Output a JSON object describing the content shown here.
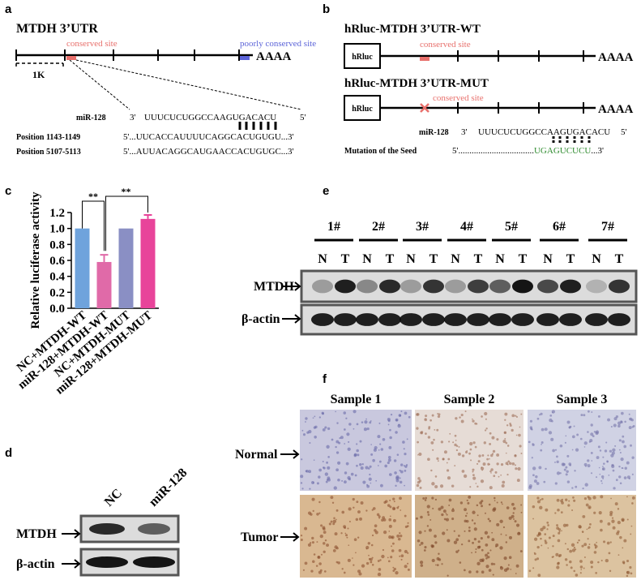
{
  "panels": {
    "a": {
      "label": "a",
      "title": "MTDH 3’UTR",
      "conserved": "conserved site",
      "poorly": "poorly conserved site",
      "polyA": "AAAA",
      "scale": "1K",
      "mirna": "miR-128",
      "end3": "3'",
      "end5": "5'",
      "mirna_seq": "UUUCUCUGGCCAAGUGACACU",
      "rows": [
        {
          "name": "Position 1143-1149",
          "seq": "5'...UUCACCAUUUUCAGGCACUGUGU...3'"
        },
        {
          "name": "Position 5107-5113",
          "seq": "5'...AUUACAGGCAUGAACCACUGUGC...3'"
        }
      ]
    },
    "b": {
      "label": "b",
      "wt_title": "hRluc-MTDH 3’UTR-WT",
      "mut_title": "hRluc-MTDH 3’UTR-MUT",
      "box": "hRluc",
      "conserved": "conserved site",
      "polyA": "AAAA",
      "mirna": "miR-128",
      "end3": "3'",
      "end5": "5'",
      "mirna_seq": "UUUCUCUGGCCAAGUGACACU",
      "mutation": "Mutation of the Seed",
      "mut_prefix": "5'..................................",
      "mut_seed": "UGAGUCUCU",
      "mut_suffix": "...3'"
    },
    "c": {
      "label": "c"
    },
    "d": {
      "label": "d",
      "lanes": [
        "NC",
        "miR-128"
      ],
      "rows": [
        "MTDH",
        "β-actin"
      ]
    },
    "e": {
      "label": "e",
      "groups": [
        "1#",
        "2#",
        "3#",
        "4#",
        "5#",
        "6#",
        "7#"
      ],
      "lane_n": "N",
      "lane_t": "T",
      "rows": [
        "MTDH",
        "β-actin"
      ]
    },
    "f": {
      "label": "f",
      "samples": [
        "Sample 1",
        "Sample 2",
        "Sample 3"
      ],
      "rows": [
        "Normal",
        "Tumor"
      ]
    }
  },
  "chart_data": {
    "type": "bar",
    "y_label": "Relative luciferase activity",
    "categories": [
      "NC+MTDH-WT",
      "miR-128+MTDH-WT",
      "NC+MTDH-MUT",
      "miR-128+MTDH-MUT"
    ],
    "values": [
      1.0,
      0.58,
      1.0,
      1.12
    ],
    "errors": [
      0,
      0.09,
      0,
      0.05
    ],
    "colors": [
      "#6fa3dc",
      "#e06aa8",
      "#8a8fc4",
      "#e8449a"
    ],
    "ylim": [
      0,
      1.2
    ],
    "yticks": [
      {
        "value": 0,
        "label": "0.0"
      },
      {
        "value": 0.2,
        "label": "0.2"
      },
      {
        "value": 0.4,
        "label": "0.4"
      },
      {
        "value": 0.6,
        "label": "0.6"
      },
      {
        "value": 0.8,
        "label": "0.8"
      },
      {
        "value": 1,
        "label": "1.0"
      },
      {
        "value": 1.2,
        "label": "1.2"
      }
    ],
    "significance": [
      "**",
      "**"
    ]
  }
}
